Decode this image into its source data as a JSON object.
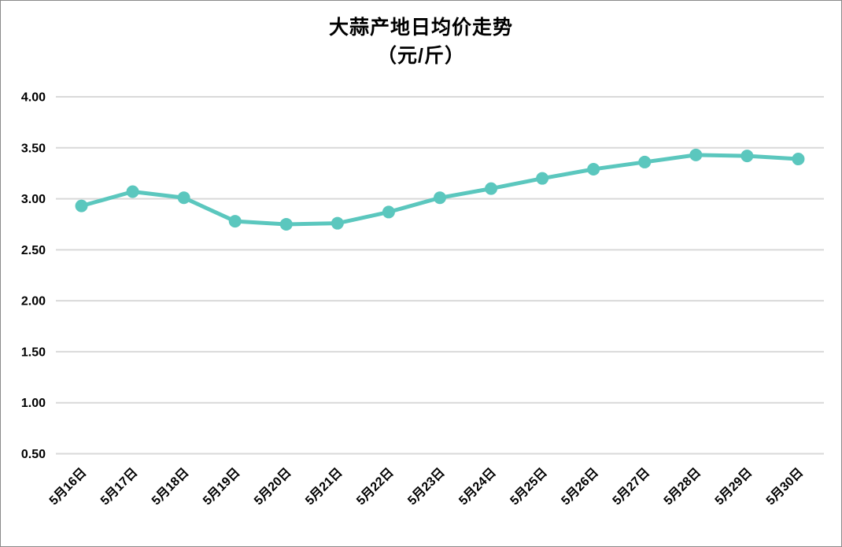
{
  "page": {
    "background": "#FFFFFF",
    "border_color": "#8A8A8A"
  },
  "chart_data": {
    "type": "line",
    "title": "大蒜产地日均价走势",
    "subtitle": "（元/斤）",
    "xlabel": "",
    "ylabel": "",
    "categories": [
      "5月16日",
      "5月17日",
      "5月18日",
      "5月19日",
      "5月20日",
      "5月21日",
      "5月22日",
      "5月23日",
      "5月24日",
      "5月25日",
      "5月26日",
      "5月27日",
      "5月28日",
      "5月29日",
      "5月30日"
    ],
    "series": [
      {
        "values": [
          2.93,
          3.07,
          3.01,
          2.78,
          2.75,
          2.76,
          2.87,
          3.01,
          3.1,
          3.2,
          3.29,
          3.36,
          3.43,
          3.42,
          3.39
        ],
        "color": "#5BC7BE"
      }
    ],
    "ylim": [
      0.5,
      4.0
    ],
    "ytick_labels": [
      "0.50",
      "1.00",
      "1.50",
      "2.00",
      "2.50",
      "3.00",
      "3.50",
      "4.00"
    ],
    "x_label_rotation": -45,
    "grid": true,
    "grid_color": "#D9D9D9",
    "text_color": "#000000",
    "legend": false
  }
}
